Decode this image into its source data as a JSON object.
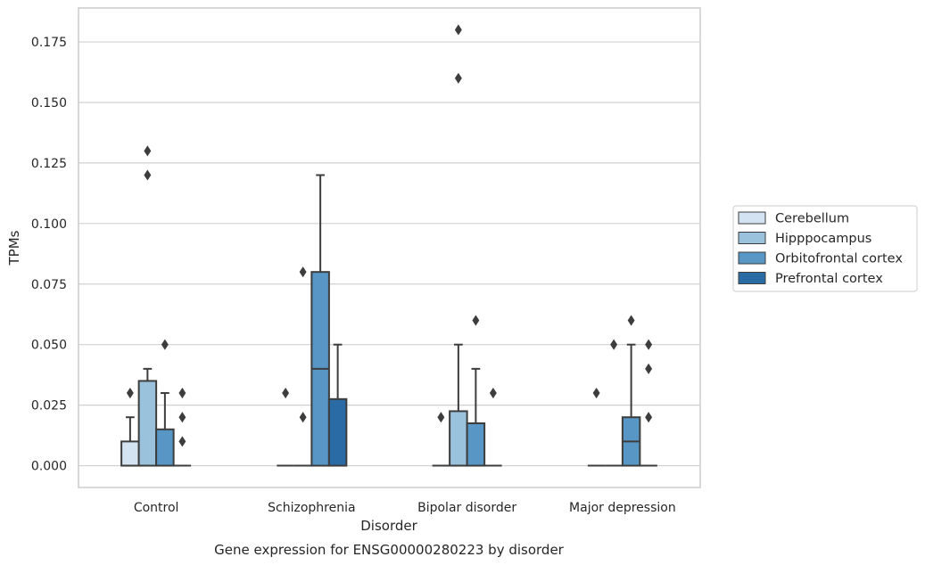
{
  "chart_data": {
    "type": "boxplot",
    "title": "Gene expression for ENSG00000280223 by disorder",
    "xlabel": "Disorder",
    "ylabel": "TPMs",
    "ylim": [
      -0.009,
      0.189
    ],
    "yticks": [
      0.0,
      0.025,
      0.05,
      0.075,
      0.1,
      0.125,
      0.15,
      0.175
    ],
    "ytick_labels": [
      "0.000",
      "0.025",
      "0.050",
      "0.075",
      "0.100",
      "0.125",
      "0.150",
      "0.175"
    ],
    "grid": "horizontal",
    "legend_position": "right",
    "categories": [
      "Control",
      "Schizophrenia",
      "Bipolar disorder",
      "Major depression"
    ],
    "series": [
      {
        "name": "Cerebellum",
        "color": "#d3e3f2",
        "boxes": [
          {
            "q1": 0.0,
            "median": 0.0,
            "q3": 0.01,
            "whisker_low": 0.0,
            "whisker_high": 0.02,
            "outliers": [
              0.03
            ]
          },
          {
            "q1": 0.0,
            "median": 0.0,
            "q3": 0.0,
            "whisker_low": 0.0,
            "whisker_high": 0.0,
            "outliers": [
              0.03
            ]
          },
          {
            "q1": 0.0,
            "median": 0.0,
            "q3": 0.0,
            "whisker_low": 0.0,
            "whisker_high": 0.0,
            "outliers": [
              0.02
            ]
          },
          {
            "q1": 0.0,
            "median": 0.0,
            "q3": 0.0,
            "whisker_low": 0.0,
            "whisker_high": 0.0,
            "outliers": [
              0.03
            ]
          }
        ]
      },
      {
        "name": "Hipppocampus",
        "color": "#9ac2dc",
        "boxes": [
          {
            "q1": 0.0,
            "median": 0.0,
            "q3": 0.035,
            "whisker_low": 0.0,
            "whisker_high": 0.04,
            "outliers": [
              0.12,
              0.13
            ]
          },
          {
            "q1": 0.0,
            "median": 0.0,
            "q3": 0.0,
            "whisker_low": 0.0,
            "whisker_high": 0.0,
            "outliers": [
              0.02,
              0.08
            ]
          },
          {
            "q1": 0.0,
            "median": 0.0,
            "q3": 0.0225,
            "whisker_low": 0.0,
            "whisker_high": 0.05,
            "outliers": [
              0.16,
              0.18
            ]
          },
          {
            "q1": 0.0,
            "median": 0.0,
            "q3": 0.0,
            "whisker_low": 0.0,
            "whisker_high": 0.0,
            "outliers": [
              0.05
            ]
          }
        ]
      },
      {
        "name": "Orbitofrontal cortex",
        "color": "#5796c5",
        "boxes": [
          {
            "q1": 0.0,
            "median": 0.0,
            "q3": 0.015,
            "whisker_low": 0.0,
            "whisker_high": 0.03,
            "outliers": [
              0.05
            ]
          },
          {
            "q1": 0.0,
            "median": 0.04,
            "q3": 0.08,
            "whisker_low": 0.0,
            "whisker_high": 0.12,
            "outliers": []
          },
          {
            "q1": 0.0,
            "median": 0.0,
            "q3": 0.0175,
            "whisker_low": 0.0,
            "whisker_high": 0.04,
            "outliers": [
              0.06
            ]
          },
          {
            "q1": 0.0,
            "median": 0.01,
            "q3": 0.02,
            "whisker_low": 0.0,
            "whisker_high": 0.05,
            "outliers": [
              0.06
            ]
          }
        ]
      },
      {
        "name": "Prefrontal cortex",
        "color": "#2a6aa5",
        "boxes": [
          {
            "q1": 0.0,
            "median": 0.0,
            "q3": 0.0,
            "whisker_low": 0.0,
            "whisker_high": 0.0,
            "outliers": [
              0.01,
              0.02,
              0.03
            ]
          },
          {
            "q1": 0.0,
            "median": 0.0,
            "q3": 0.0275,
            "whisker_low": 0.0,
            "whisker_high": 0.05,
            "outliers": []
          },
          {
            "q1": 0.0,
            "median": 0.0,
            "q3": 0.0,
            "whisker_low": 0.0,
            "whisker_high": 0.0,
            "outliers": [
              0.03
            ]
          },
          {
            "q1": 0.0,
            "median": 0.0,
            "q3": 0.0,
            "whisker_low": 0.0,
            "whisker_high": 0.0,
            "outliers": [
              0.02,
              0.04,
              0.05
            ]
          }
        ]
      }
    ]
  }
}
